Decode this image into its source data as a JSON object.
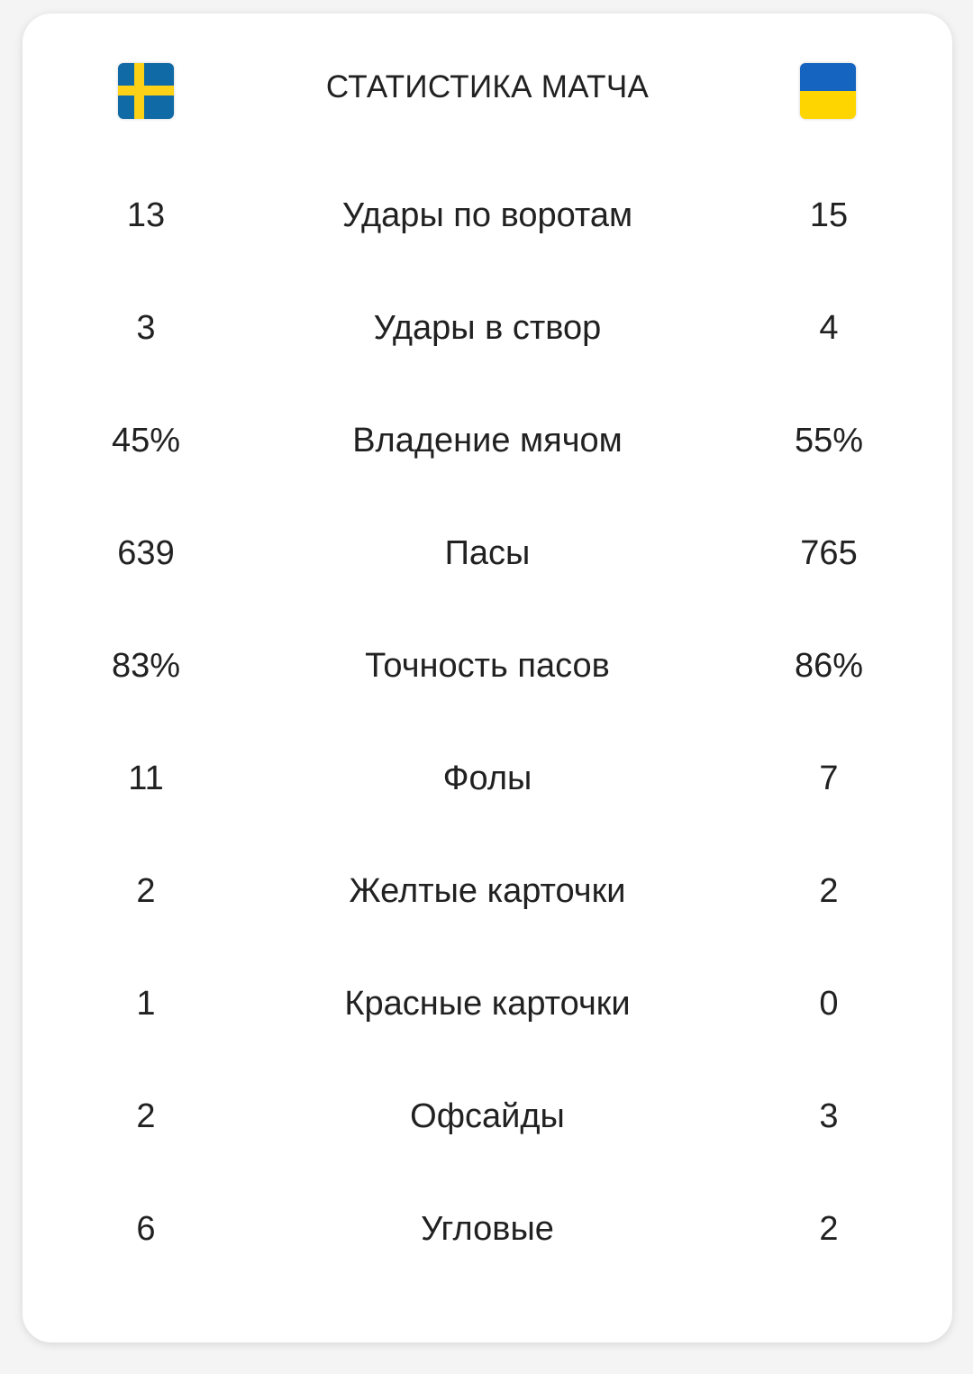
{
  "header": {
    "title": "СТАТИСТИКА МАТЧА",
    "home_flag": "sweden-flag",
    "away_flag": "ukraine-flag"
  },
  "colors": {
    "sweden_blue": "#106aa6",
    "sweden_yellow": "#fcd116",
    "ukraine_blue": "#1565c0",
    "ukraine_yellow": "#ffd500"
  },
  "stats": [
    {
      "home": "13",
      "label": "Удары по воротам",
      "away": "15"
    },
    {
      "home": "3",
      "label": "Удары в створ",
      "away": "4"
    },
    {
      "home": "45%",
      "label": "Владение мячом",
      "away": "55%"
    },
    {
      "home": "639",
      "label": "Пасы",
      "away": "765"
    },
    {
      "home": "83%",
      "label": "Точность пасов",
      "away": "86%"
    },
    {
      "home": "11",
      "label": "Фолы",
      "away": "7"
    },
    {
      "home": "2",
      "label": "Желтые карточки",
      "away": "2"
    },
    {
      "home": "1",
      "label": "Красные карточки",
      "away": "0"
    },
    {
      "home": "2",
      "label": "Офсайды",
      "away": "3"
    },
    {
      "home": "6",
      "label": "Угловые",
      "away": "2"
    }
  ]
}
